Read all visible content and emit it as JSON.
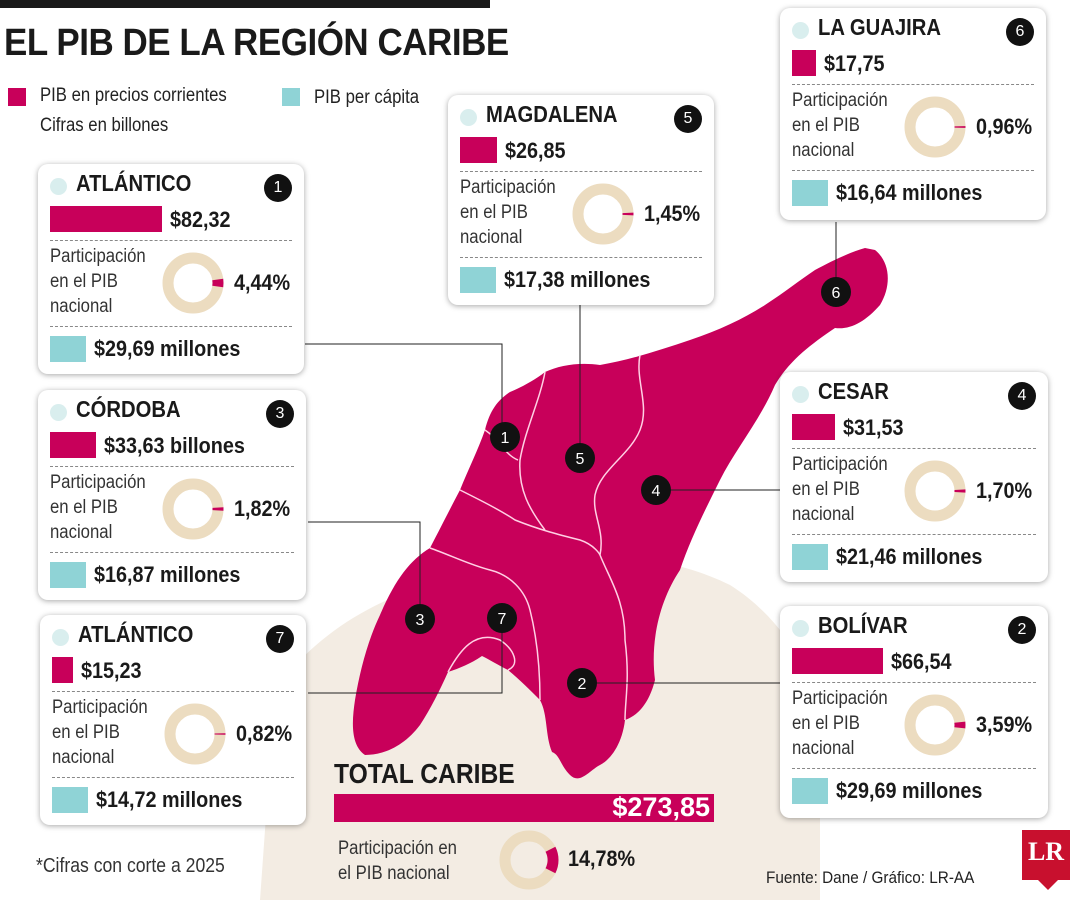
{
  "title": "EL PIB DE LA REGIÓN CARIBE",
  "legend": {
    "pib_label_line1": "PIB en precios corrientes",
    "pib_label_line2": "Cifras en billones",
    "percapita_label": "PIB per cápita"
  },
  "colors": {
    "pib": "#c8005a",
    "percapita": "#8fd3d6",
    "donut_ring": "#ecdcc0",
    "map_land": "#c8005a",
    "map_background": "#f3ece3"
  },
  "labels": {
    "participacion_line1": "Participación",
    "participacion_line2": "en el PIB",
    "participacion_line3": "nacional"
  },
  "total": {
    "title": "TOTAL CARIBE",
    "value": "$273,85",
    "participacion_line1": "Participación en",
    "participacion_line2": "el PIB nacional",
    "participacion": "14,78%"
  },
  "footnote": "*Cifras con corte a 2025",
  "source": "Fuente: Dane / Gráfico: LR-AA",
  "logo": "LR",
  "chart_data": {
    "type": "bar",
    "title": "EL PIB DE LA REGIÓN CARIBE",
    "units": {
      "pib": "billones",
      "per_capita": "millones"
    },
    "categories": [
      "ATLÁNTICO",
      "BOLÍVAR",
      "CÓRDOBA",
      "CESAR",
      "MAGDALENA",
      "LA GUAJIRA",
      "ATLÁNTICO"
    ],
    "numbers": [
      "1",
      "2",
      "3",
      "4",
      "5",
      "6",
      "7"
    ],
    "series": [
      {
        "name": "PIB en precios corrientes",
        "values": [
          82.32,
          66.54,
          33.63,
          31.53,
          26.85,
          17.75,
          15.23
        ]
      },
      {
        "name": "PIB per cápita",
        "values": [
          29.69,
          29.69,
          16.87,
          21.46,
          17.38,
          16.64,
          14.72
        ]
      },
      {
        "name": "Participación en el PIB nacional",
        "values": [
          4.44,
          3.59,
          1.82,
          1.7,
          1.45,
          0.96,
          0.82
        ]
      }
    ],
    "total": {
      "pib": 273.85,
      "participacion": 14.78
    }
  },
  "departments": [
    {
      "key": "atlantico",
      "name": "ATLÁNTICO",
      "num": "1",
      "pib": "$82,32",
      "pib_value": 82.32,
      "share": "4,44%",
      "share_value": 4.44,
      "percapita": "$29,69 millones"
    },
    {
      "key": "magdalena",
      "name": "MAGDALENA",
      "num": "5",
      "pib": "$26,85",
      "pib_value": 26.85,
      "share": "1,45%",
      "share_value": 1.45,
      "percapita": "$17,38 millones"
    },
    {
      "key": "guajira",
      "name": "LA GUAJIRA",
      "num": "6",
      "pib": "$17,75",
      "pib_value": 17.75,
      "share": "0,96%",
      "share_value": 0.96,
      "percapita": "$16,64 millones"
    },
    {
      "key": "cordoba",
      "name": "CÓRDOBA",
      "num": "3",
      "pib": "$33,63 billones",
      "pib_value": 33.63,
      "share": "1,82%",
      "share_value": 1.82,
      "percapita": "$16,87 millones"
    },
    {
      "key": "cesar",
      "name": "CESAR",
      "num": "4",
      "pib": "$31,53",
      "pib_value": 31.53,
      "share": "1,70%",
      "share_value": 1.7,
      "percapita": "$21,46 millones"
    },
    {
      "key": "atlantico7",
      "name": "ATLÁNTICO",
      "num": "7",
      "pib": "$15,23",
      "pib_value": 15.23,
      "share": "0,82%",
      "share_value": 0.82,
      "percapita": "$14,72 millones"
    },
    {
      "key": "bolivar",
      "name": "BOLÍVAR",
      "num": "2",
      "pib": "$66,54",
      "pib_value": 66.54,
      "share": "3,59%",
      "share_value": 3.59,
      "percapita": "$29,69 millones"
    }
  ]
}
